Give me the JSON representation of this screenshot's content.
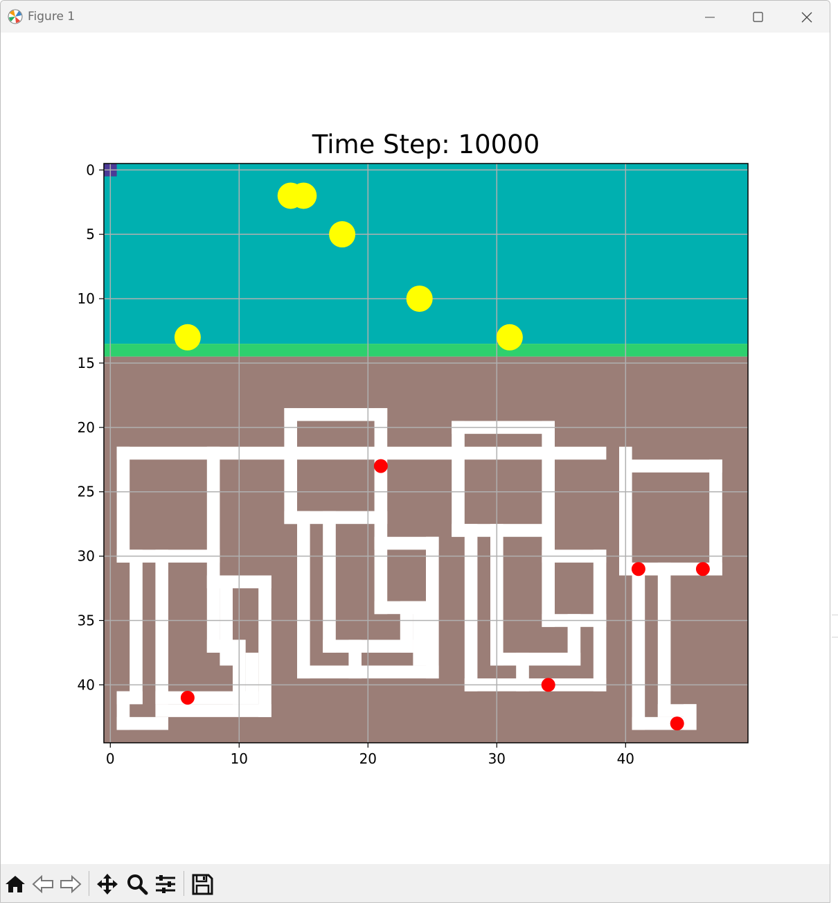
{
  "window": {
    "title": "Figure 1",
    "icon": "matplotlib-icon"
  },
  "controls": [
    "minimize-icon",
    "maximize-icon",
    "close-icon"
  ],
  "toolbar": {
    "buttons": [
      "home-icon",
      "back-icon",
      "forward-icon",
      "pan-icon",
      "zoom-icon",
      "configure-subplots-icon",
      "save-icon"
    ]
  },
  "colors": {
    "water": "#00b0b0",
    "shore": "#2ed06e",
    "soil": "#9b7e77",
    "tunnel": "#ffffff",
    "fish": "#ffff00",
    "worm": "#ff0000",
    "agent": "#4b3a96",
    "grid": "#b0b0b0"
  },
  "chart_data": {
    "type": "heatmap",
    "title": "Time Step: 10000",
    "xlim": [
      -0.5,
      49.5
    ],
    "ylim": [
      44.5,
      -0.5
    ],
    "xticks": [
      0,
      10,
      20,
      30,
      40
    ],
    "yticks": [
      0,
      5,
      10,
      15,
      20,
      25,
      30,
      35,
      40
    ],
    "grid": true,
    "regions": [
      {
        "name": "water",
        "rows": [
          0,
          13
        ]
      },
      {
        "name": "shore",
        "rows": [
          14,
          14
        ]
      },
      {
        "name": "soil",
        "rows": [
          15,
          44
        ]
      }
    ],
    "agent": {
      "x": 0,
      "y": 0
    },
    "yellow_points": [
      {
        "x": 14,
        "y": 2
      },
      {
        "x": 15,
        "y": 2
      },
      {
        "x": 18,
        "y": 5
      },
      {
        "x": 24,
        "y": 10
      },
      {
        "x": 6,
        "y": 13
      },
      {
        "x": 31,
        "y": 13
      }
    ],
    "red_points": [
      {
        "x": 21,
        "y": 23
      },
      {
        "x": 41,
        "y": 31
      },
      {
        "x": 46,
        "y": 31
      },
      {
        "x": 34,
        "y": 40
      },
      {
        "x": 6,
        "y": 41
      },
      {
        "x": 44,
        "y": 43
      }
    ],
    "tunnels": [
      [
        1,
        22,
        38,
        22
      ],
      [
        1,
        22,
        1,
        30
      ],
      [
        1,
        30,
        8,
        30
      ],
      [
        8,
        22,
        8,
        32
      ],
      [
        14,
        19,
        21,
        19
      ],
      [
        14,
        19,
        14,
        27
      ],
      [
        14,
        27,
        21,
        27
      ],
      [
        21,
        19,
        21,
        29
      ],
      [
        21,
        29,
        25,
        29
      ],
      [
        25,
        29,
        25,
        39
      ],
      [
        21,
        29,
        21,
        34
      ],
      [
        21,
        34,
        24,
        34
      ],
      [
        24,
        34,
        24,
        38
      ],
      [
        15,
        27,
        15,
        39
      ],
      [
        15,
        39,
        25,
        39
      ],
      [
        17,
        27,
        17,
        37
      ],
      [
        17,
        37,
        23,
        37
      ],
      [
        23,
        34,
        23,
        37
      ],
      [
        19,
        37,
        19,
        39
      ],
      [
        27,
        20,
        34,
        20
      ],
      [
        27,
        20,
        27,
        28
      ],
      [
        27,
        28,
        34,
        28
      ],
      [
        34,
        20,
        34,
        35
      ],
      [
        34,
        30,
        38,
        30
      ],
      [
        38,
        30,
        38,
        40
      ],
      [
        34,
        35,
        38,
        35
      ],
      [
        28,
        28,
        28,
        40
      ],
      [
        28,
        40,
        38,
        40
      ],
      [
        30,
        28,
        30,
        38
      ],
      [
        30,
        38,
        36,
        38
      ],
      [
        36,
        35,
        36,
        38
      ],
      [
        32,
        38,
        32,
        40
      ],
      [
        40,
        22,
        40,
        31
      ],
      [
        40,
        23,
        47,
        23
      ],
      [
        47,
        23,
        47,
        31
      ],
      [
        40,
        31,
        47,
        31
      ],
      [
        41,
        31,
        41,
        43
      ],
      [
        41,
        43,
        45,
        43
      ],
      [
        45,
        42,
        45,
        43
      ],
      [
        43,
        31,
        43,
        42
      ],
      [
        43,
        42,
        45,
        42
      ],
      [
        2,
        30,
        2,
        41
      ],
      [
        1,
        41,
        1,
        43
      ],
      [
        1,
        43,
        4,
        43
      ],
      [
        1,
        41,
        2,
        41
      ],
      [
        4,
        30,
        4,
        41
      ],
      [
        4,
        41,
        11,
        41
      ],
      [
        4,
        42,
        12,
        42
      ],
      [
        9,
        32,
        9,
        38
      ],
      [
        9,
        32,
        12,
        32
      ],
      [
        12,
        32,
        12,
        42
      ],
      [
        8,
        37,
        10,
        37
      ],
      [
        10,
        37,
        10,
        41
      ],
      [
        11,
        38,
        11,
        41
      ],
      [
        8,
        32,
        8,
        37
      ]
    ]
  }
}
